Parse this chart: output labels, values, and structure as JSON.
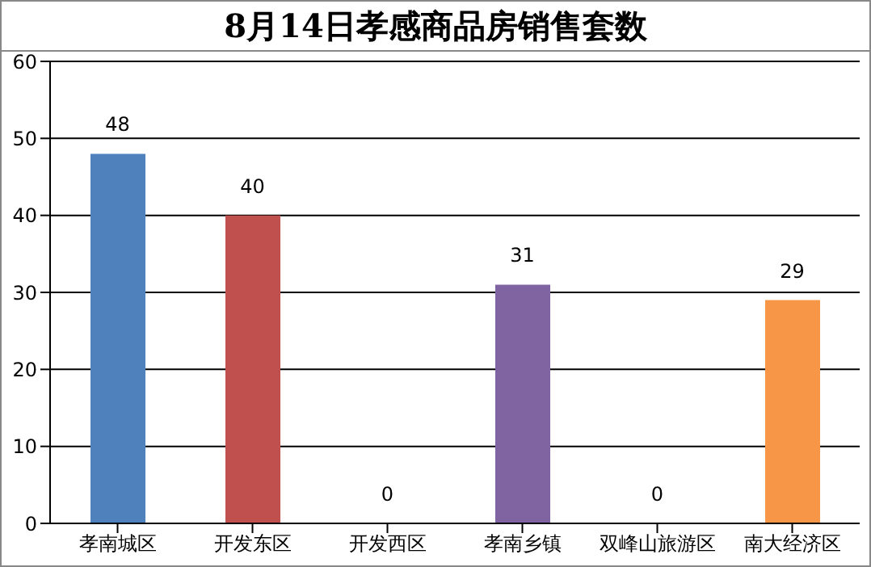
{
  "chart_data": {
    "type": "bar",
    "title": "8月14日孝感商品房销售套数",
    "categories": [
      "孝南城区",
      "开发东区",
      "开发西区",
      "孝南乡镇",
      "双峰山旅游区",
      "南大经济区"
    ],
    "values": [
      48,
      40,
      0,
      31,
      0,
      29
    ],
    "colors": [
      "#4f81bd",
      "#c0504d",
      "#9bbb59",
      "#8064a2",
      "#4bacc6",
      "#f79646"
    ],
    "ylim": [
      0,
      60
    ],
    "yticks": [
      0,
      10,
      20,
      30,
      40,
      50,
      60
    ],
    "grid": "y",
    "data_labels": true
  }
}
